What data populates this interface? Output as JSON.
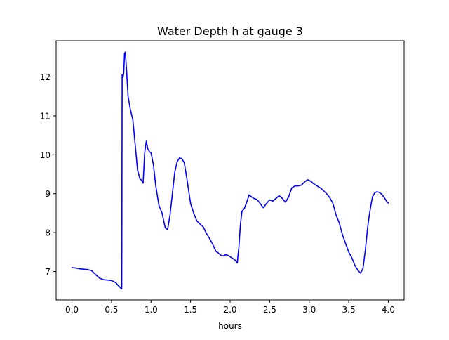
{
  "chart_data": {
    "type": "line",
    "title": "Water Depth h at gauge 3",
    "xlabel": "hours",
    "ylabel": "",
    "xlim": [
      -0.2,
      4.2
    ],
    "ylim": [
      6.27,
      12.93
    ],
    "xticks": [
      0.0,
      0.5,
      1.0,
      1.5,
      2.0,
      2.5,
      3.0,
      3.5,
      4.0
    ],
    "xtick_labels": [
      "0.0",
      "0.5",
      "1.0",
      "1.5",
      "2.0",
      "2.5",
      "3.0",
      "3.5",
      "4.0"
    ],
    "yticks": [
      7,
      8,
      9,
      10,
      11,
      12
    ],
    "ytick_labels": [
      "7",
      "8",
      "9",
      "10",
      "11",
      "12"
    ],
    "grid": false,
    "legend": null,
    "series": [
      {
        "color": "#0000ff",
        "x": [
          0.0,
          0.05,
          0.1,
          0.15,
          0.2,
          0.25,
          0.3,
          0.35,
          0.4,
          0.45,
          0.5,
          0.55,
          0.6,
          0.63,
          0.635,
          0.645,
          0.655,
          0.665,
          0.675,
          0.69,
          0.71,
          0.74,
          0.77,
          0.8,
          0.83,
          0.86,
          0.88,
          0.9,
          0.92,
          0.94,
          0.96,
          0.98,
          1.0,
          1.03,
          1.06,
          1.1,
          1.14,
          1.18,
          1.21,
          1.24,
          1.27,
          1.3,
          1.33,
          1.36,
          1.39,
          1.42,
          1.46,
          1.5,
          1.54,
          1.58,
          1.62,
          1.66,
          1.7,
          1.74,
          1.78,
          1.82,
          1.85,
          1.88,
          1.91,
          1.94,
          1.97,
          2.0,
          2.03,
          2.06,
          2.09,
          2.11,
          2.13,
          2.15,
          2.18,
          2.21,
          2.24,
          2.27,
          2.3,
          2.34,
          2.38,
          2.42,
          2.46,
          2.5,
          2.54,
          2.58,
          2.62,
          2.66,
          2.7,
          2.74,
          2.78,
          2.82,
          2.86,
          2.9,
          2.94,
          2.98,
          3.02,
          3.06,
          3.1,
          3.14,
          3.18,
          3.22,
          3.26,
          3.3,
          3.34,
          3.38,
          3.42,
          3.46,
          3.5,
          3.54,
          3.58,
          3.62,
          3.65,
          3.68,
          3.71,
          3.74,
          3.76,
          3.78,
          3.8,
          3.83,
          3.86,
          3.89,
          3.92,
          3.95,
          3.98,
          4.0
        ],
        "y": [
          7.1,
          7.09,
          7.07,
          7.06,
          7.05,
          7.02,
          6.92,
          6.83,
          6.79,
          6.78,
          6.77,
          6.72,
          6.61,
          6.55,
          12.06,
          11.98,
          12.1,
          12.6,
          12.64,
          12.2,
          11.5,
          11.15,
          10.9,
          10.25,
          9.6,
          9.38,
          9.35,
          9.27,
          10.05,
          10.35,
          10.15,
          10.08,
          10.05,
          9.75,
          9.2,
          8.7,
          8.5,
          8.12,
          8.08,
          8.45,
          9.0,
          9.55,
          9.82,
          9.92,
          9.9,
          9.8,
          9.3,
          8.75,
          8.5,
          8.3,
          8.22,
          8.15,
          7.98,
          7.85,
          7.7,
          7.52,
          7.48,
          7.42,
          7.4,
          7.43,
          7.42,
          7.38,
          7.34,
          7.3,
          7.22,
          7.6,
          8.2,
          8.55,
          8.62,
          8.78,
          8.97,
          8.92,
          8.88,
          8.85,
          8.75,
          8.64,
          8.75,
          8.84,
          8.81,
          8.88,
          8.95,
          8.88,
          8.78,
          8.92,
          9.15,
          9.2,
          9.2,
          9.22,
          9.3,
          9.36,
          9.32,
          9.25,
          9.2,
          9.15,
          9.08,
          9.0,
          8.9,
          8.75,
          8.45,
          8.25,
          7.95,
          7.72,
          7.5,
          7.35,
          7.15,
          7.02,
          6.96,
          7.08,
          7.55,
          8.15,
          8.45,
          8.7,
          8.92,
          9.03,
          9.05,
          9.03,
          8.98,
          8.9,
          8.8,
          8.76
        ]
      }
    ]
  }
}
